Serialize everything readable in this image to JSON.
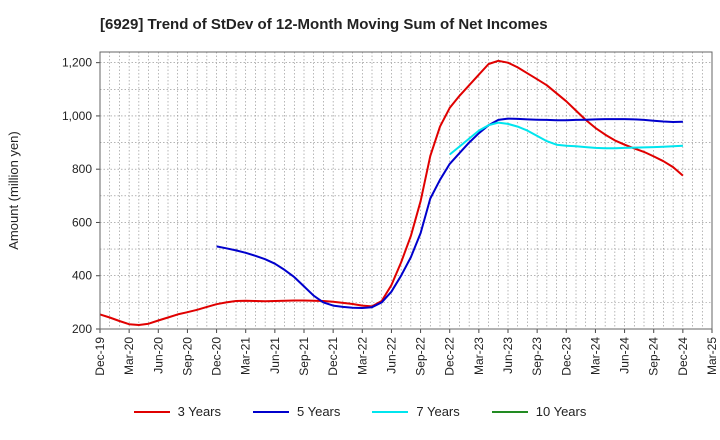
{
  "title": "[6929]  Trend of StDev of 12-Month Moving Sum of Net Incomes",
  "chart_data": {
    "type": "line",
    "title": "[6929]  Trend of StDev of 12-Month Moving Sum of Net Incomes",
    "ylabel": "Amount (million yen)",
    "xlabel": "",
    "ylim": [
      200,
      1240
    ],
    "yticks": [
      200,
      400,
      600,
      800,
      1000,
      1200
    ],
    "ytick_labels": [
      "200",
      "400",
      "600",
      "800",
      "1,000",
      "1,200"
    ],
    "xlim": [
      "2019-12",
      "2025-03"
    ],
    "xtick_labels": [
      "Dec-19",
      "Mar-20",
      "Jun-20",
      "Sep-20",
      "Dec-20",
      "Mar-21",
      "Jun-21",
      "Sep-21",
      "Dec-21",
      "Mar-22",
      "Jun-22",
      "Sep-22",
      "Dec-22",
      "Mar-23",
      "Jun-23",
      "Sep-23",
      "Dec-23",
      "Mar-24",
      "Jun-24",
      "Sep-24",
      "Dec-24",
      "Mar-25"
    ],
    "grid": true,
    "legend_position": "bottom",
    "series": [
      {
        "name": "3 Years",
        "color": "#e00000",
        "x": [
          "2019-12",
          "2020-01",
          "2020-02",
          "2020-03",
          "2020-04",
          "2020-05",
          "2020-06",
          "2020-07",
          "2020-08",
          "2020-09",
          "2020-10",
          "2020-11",
          "2020-12",
          "2021-01",
          "2021-02",
          "2021-03",
          "2021-04",
          "2021-05",
          "2021-06",
          "2021-07",
          "2021-08",
          "2021-09",
          "2021-10",
          "2021-11",
          "2021-12",
          "2022-01",
          "2022-02",
          "2022-03",
          "2022-04",
          "2022-05",
          "2022-06",
          "2022-07",
          "2022-08",
          "2022-09",
          "2022-10",
          "2022-11",
          "2022-12",
          "2023-01",
          "2023-02",
          "2023-03",
          "2023-04",
          "2023-05",
          "2023-06",
          "2023-07",
          "2023-08",
          "2023-09",
          "2023-10",
          "2023-11",
          "2023-12",
          "2024-01",
          "2024-02",
          "2024-03",
          "2024-04",
          "2024-05",
          "2024-06",
          "2024-07",
          "2024-08",
          "2024-09",
          "2024-10",
          "2024-11",
          "2024-12"
        ],
        "values": [
          255,
          243,
          230,
          218,
          215,
          220,
          232,
          243,
          255,
          263,
          272,
          283,
          293,
          300,
          305,
          306,
          305,
          304,
          305,
          306,
          307,
          307,
          306,
          305,
          302,
          298,
          294,
          288,
          285,
          305,
          365,
          450,
          550,
          680,
          850,
          960,
          1030,
          1075,
          1115,
          1155,
          1195,
          1207,
          1200,
          1182,
          1160,
          1138,
          1115,
          1085,
          1055,
          1020,
          985,
          955,
          930,
          908,
          892,
          878,
          865,
          848,
          830,
          808,
          776
        ]
      },
      {
        "name": "5 Years",
        "color": "#0000cc",
        "x": [
          "2020-12",
          "2021-01",
          "2021-02",
          "2021-03",
          "2021-04",
          "2021-05",
          "2021-06",
          "2021-07",
          "2021-08",
          "2021-09",
          "2021-10",
          "2021-11",
          "2021-12",
          "2022-01",
          "2022-02",
          "2022-03",
          "2022-04",
          "2022-05",
          "2022-06",
          "2022-07",
          "2022-08",
          "2022-09",
          "2022-10",
          "2022-11",
          "2022-12",
          "2023-01",
          "2023-02",
          "2023-03",
          "2023-04",
          "2023-05",
          "2023-06",
          "2023-07",
          "2023-08",
          "2023-09",
          "2023-10",
          "2023-11",
          "2023-12",
          "2024-01",
          "2024-02",
          "2024-03",
          "2024-04",
          "2024-05",
          "2024-06",
          "2024-07",
          "2024-08",
          "2024-09",
          "2024-10",
          "2024-11",
          "2024-12"
        ],
        "values": [
          510,
          503,
          495,
          486,
          475,
          462,
          445,
          422,
          395,
          360,
          325,
          300,
          288,
          283,
          280,
          279,
          282,
          300,
          340,
          400,
          470,
          560,
          690,
          760,
          820,
          860,
          900,
          935,
          965,
          985,
          990,
          989,
          987,
          986,
          985,
          984,
          984,
          985,
          986,
          987,
          988,
          988,
          988,
          987,
          985,
          982,
          979,
          977,
          978
        ]
      },
      {
        "name": "7 Years",
        "color": "#00e5ee",
        "x": [
          "2022-12",
          "2023-01",
          "2023-02",
          "2023-03",
          "2023-04",
          "2023-05",
          "2023-06",
          "2023-07",
          "2023-08",
          "2023-09",
          "2023-10",
          "2023-11",
          "2023-12",
          "2024-01",
          "2024-02",
          "2024-03",
          "2024-04",
          "2024-05",
          "2024-06",
          "2024-07",
          "2024-08",
          "2024-09",
          "2024-10",
          "2024-11",
          "2024-12"
        ],
        "values": [
          855,
          885,
          915,
          945,
          965,
          975,
          970,
          960,
          945,
          925,
          905,
          892,
          888,
          886,
          883,
          880,
          879,
          879,
          880,
          881,
          882,
          883,
          884,
          886,
          888
        ]
      },
      {
        "name": "10 Years",
        "color": "#228b22",
        "x": [],
        "values": []
      }
    ]
  }
}
